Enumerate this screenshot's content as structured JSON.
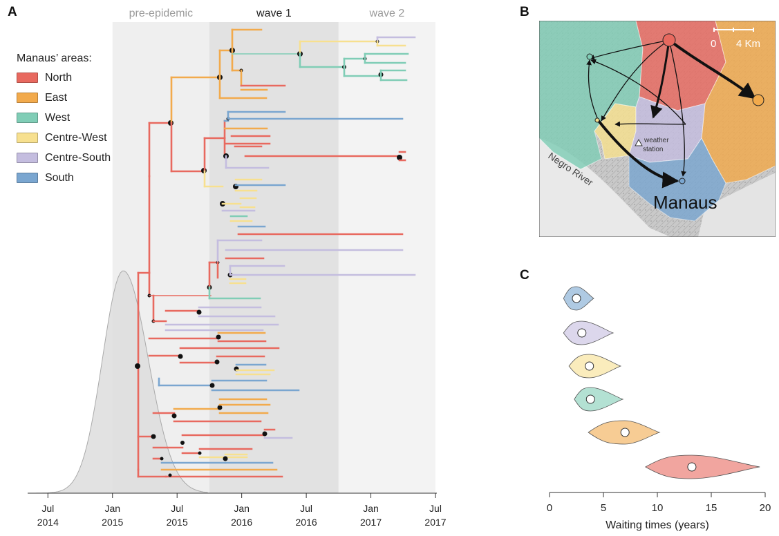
{
  "panel_labels": {
    "a": "A",
    "b": "B",
    "c": "C"
  },
  "colors": {
    "North": "#e8695f",
    "East": "#f2aa4c",
    "West": "#80cdb6",
    "Centre-West": "#f7e08f",
    "Centre-South": "#c4bddf",
    "South": "#7aa6d0",
    "node": "#111111",
    "density": "#dddddd"
  },
  "legend": {
    "title": "Manaus’ areas:",
    "items": [
      {
        "name": "North",
        "color": "#e8695f"
      },
      {
        "name": "East",
        "color": "#f2aa4c"
      },
      {
        "name": "West",
        "color": "#80cdb6"
      },
      {
        "name": "Centre-West",
        "color": "#f7e08f"
      },
      {
        "name": "Centre-South",
        "color": "#c4bddf"
      },
      {
        "name": "South",
        "color": "#7aa6d0"
      }
    ]
  },
  "map": {
    "place_label": "Manaus",
    "river_label": "Negro River",
    "station_label_1": "weather",
    "station_label_2": "station",
    "scale_zero": "0",
    "scale_end": "4 Km"
  },
  "chart_data": [
    {
      "type": "tree",
      "panel": "A",
      "xlim": [
        "2014-03",
        "2017-07"
      ],
      "x_ticks": [
        {
          "month": "Jul",
          "year": "2014"
        },
        {
          "month": "Jan",
          "year": "2015"
        },
        {
          "month": "Jul",
          "year": "2015"
        },
        {
          "month": "Jan",
          "year": "2016"
        },
        {
          "month": "Jul",
          "year": "2016"
        },
        {
          "month": "Jan",
          "year": "2017"
        },
        {
          "month": "Jul",
          "year": "2017"
        }
      ],
      "periods": [
        {
          "label": "pre-epidemic",
          "start": "2015-01",
          "end": "2015-10"
        },
        {
          "label": "wave 1",
          "start": "2015-10",
          "end": "2016-10"
        },
        {
          "label": "wave 2",
          "start": "2016-10",
          "end": "2017-07"
        }
      ],
      "root_age_density_peak": "2015-02"
    },
    {
      "type": "violin",
      "panel": "C",
      "xlabel": "Waiting times (years)",
      "xlim": [
        0,
        20
      ],
      "xticks": [
        0,
        5,
        10,
        15,
        20
      ],
      "series": [
        {
          "area": "South",
          "median": 2.5,
          "range": [
            1.3,
            4.1
          ]
        },
        {
          "area": "Centre-South",
          "median": 3.0,
          "range": [
            1.3,
            5.9
          ]
        },
        {
          "area": "Centre-West",
          "median": 3.7,
          "range": [
            1.8,
            6.6
          ]
        },
        {
          "area": "West",
          "median": 3.8,
          "range": [
            2.3,
            6.8
          ]
        },
        {
          "area": "East",
          "median": 7.0,
          "range": [
            3.6,
            10.2
          ]
        },
        {
          "area": "North",
          "median": 13.2,
          "range": [
            8.9,
            19.5
          ]
        }
      ]
    }
  ]
}
